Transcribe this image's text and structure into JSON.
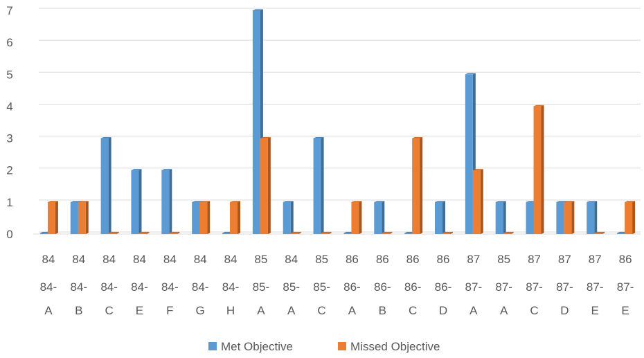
{
  "chart_data": {
    "type": "bar",
    "categories": [
      {
        "outer": "84",
        "inner": [
          "84-",
          "A"
        ]
      },
      {
        "outer": "84",
        "inner": [
          "84-",
          "B"
        ]
      },
      {
        "outer": "84",
        "inner": [
          "84-",
          "C"
        ]
      },
      {
        "outer": "84",
        "inner": [
          "84-",
          "E"
        ]
      },
      {
        "outer": "84",
        "inner": [
          "84-",
          "F"
        ]
      },
      {
        "outer": "84",
        "inner": [
          "84-",
          "G"
        ]
      },
      {
        "outer": "84",
        "inner": [
          "84-",
          "H"
        ]
      },
      {
        "outer": "85",
        "inner": [
          "85-",
          "A"
        ]
      },
      {
        "outer": "84",
        "inner": [
          "85-",
          "A"
        ]
      },
      {
        "outer": "85",
        "inner": [
          "85-",
          "C"
        ]
      },
      {
        "outer": "86",
        "inner": [
          "86-",
          "A"
        ]
      },
      {
        "outer": "86",
        "inner": [
          "86-",
          "B"
        ]
      },
      {
        "outer": "86",
        "inner": [
          "86-",
          "C"
        ]
      },
      {
        "outer": "86",
        "inner": [
          "86-",
          "D"
        ]
      },
      {
        "outer": "87",
        "inner": [
          "87-",
          "A"
        ]
      },
      {
        "outer": "85",
        "inner": [
          "87-",
          "A"
        ]
      },
      {
        "outer": "87",
        "inner": [
          "87-",
          "C"
        ]
      },
      {
        "outer": "87",
        "inner": [
          "87-",
          "D"
        ]
      },
      {
        "outer": "87",
        "inner": [
          "87-",
          "E"
        ]
      },
      {
        "outer": "86",
        "inner": [
          "87-",
          "E"
        ]
      }
    ],
    "series": [
      {
        "name": "Met Objective",
        "color": "#5b9bd5",
        "values": [
          0,
          1,
          3,
          2,
          2,
          1,
          0,
          7,
          1,
          3,
          0,
          1,
          0,
          1,
          5,
          1,
          1,
          1,
          1,
          0
        ]
      },
      {
        "name": "Missed Objective",
        "color": "#ed7d31",
        "values": [
          1,
          1,
          0,
          0,
          0,
          1,
          1,
          3,
          0,
          0,
          1,
          0,
          3,
          0,
          2,
          0,
          4,
          1,
          0,
          1
        ]
      }
    ],
    "y_ticks": [
      "0",
      "1",
      "2",
      "3",
      "4",
      "5",
      "6",
      "7"
    ],
    "ylim": [
      0,
      7
    ],
    "grid": true,
    "legend": "bottom",
    "style": "3d-column"
  }
}
